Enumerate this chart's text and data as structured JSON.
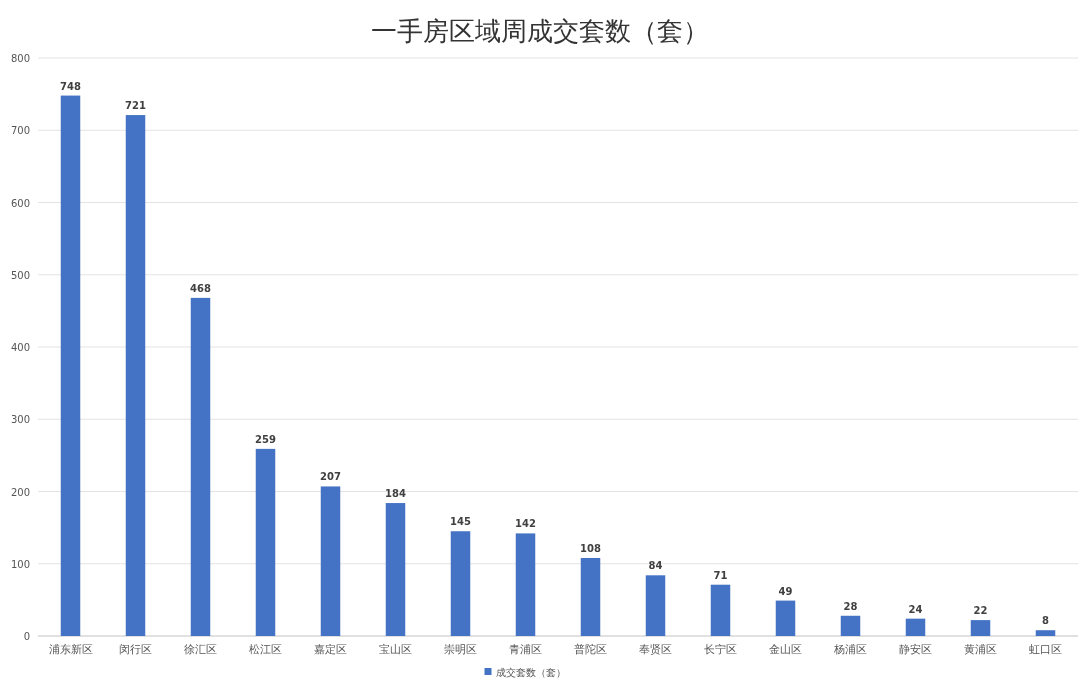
{
  "chart_data": {
    "type": "bar",
    "title": "一手房区域周成交套数（套）",
    "categories": [
      "浦东新区",
      "闵行区",
      "徐汇区",
      "松江区",
      "嘉定区",
      "宝山区",
      "崇明区",
      "青浦区",
      "普陀区",
      "奉贤区",
      "长宁区",
      "金山区",
      "杨浦区",
      "静安区",
      "黄浦区",
      "虹口区"
    ],
    "series": [
      {
        "name": "成交套数（套）",
        "color": "#4472c4",
        "values": [
          748,
          721,
          468,
          259,
          207,
          184,
          145,
          142,
          108,
          84,
          71,
          49,
          28,
          24,
          22,
          8
        ]
      }
    ],
    "ylim": [
      0,
      800
    ],
    "yticks": [
      0,
      100,
      200,
      300,
      400,
      500,
      600,
      700,
      800
    ],
    "grid": "y",
    "legend": "bottom",
    "data_labels": true
  }
}
